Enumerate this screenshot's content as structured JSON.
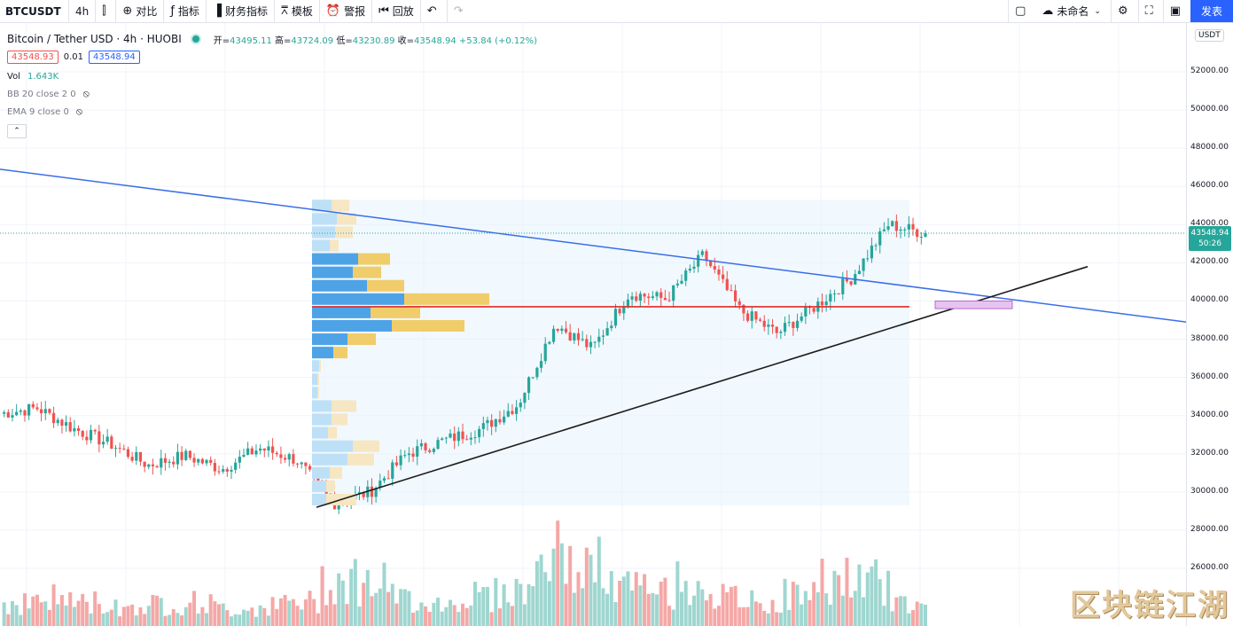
{
  "toolbar": {
    "symbol": "BTCUSDT",
    "interval": "4h",
    "compare": "对比",
    "indicators": "指标",
    "financials": "财务指标",
    "templates": "模板",
    "alerts": "警报",
    "replay": "回放",
    "layout_name": "未命名",
    "publish": "发表"
  },
  "legend": {
    "title": "Bitcoin / Tether USD · 4h · HUOBI",
    "open_label": "开",
    "open": "43495.11",
    "high_label": "高",
    "high": "43724.09",
    "low_label": "低",
    "low": "43230.89",
    "close_label": "收",
    "close": "43548.94",
    "change": "+53.84 (+0.12%)",
    "bid": "43548.93",
    "spread": "0.01",
    "ask": "43548.94",
    "vol_label": "Vol",
    "vol_value": "1.643K",
    "bb": "BB 20 close 2 0",
    "ema": "EMA 9 close 0"
  },
  "price_axis": {
    "currency": "USDT",
    "ticks": [
      "52000.00",
      "50000.00",
      "48000.00",
      "46000.00",
      "44000.00",
      "42000.00",
      "40000.00",
      "38000.00",
      "36000.00",
      "34000.00",
      "32000.00",
      "30000.00",
      "28000.00",
      "26000.00"
    ],
    "last_price": "43548.94",
    "countdown": "50:26"
  },
  "watermark": "区块链江湖",
  "chart_data": {
    "type": "candlestick",
    "symbol": "BTCUSDT",
    "interval": "4h",
    "ylim": [
      24000,
      53500
    ],
    "x": [
      0,
      1,
      2,
      3,
      4,
      5,
      6,
      7,
      8,
      9,
      10,
      11,
      12,
      13,
      14,
      15,
      16,
      17,
      18,
      19,
      20,
      21,
      22,
      23,
      24,
      25
    ],
    "close_path": [
      34100,
      34400,
      33300,
      32500,
      31400,
      31900,
      31200,
      32300,
      31700,
      29400,
      30000,
      32000,
      32700,
      33300,
      34600,
      38800,
      37500,
      40400,
      40100,
      42400,
      39500,
      38300,
      39700,
      41200,
      44000,
      43548.94
    ],
    "volume_relative": [
      0.3,
      0.35,
      0.3,
      0.25,
      0.28,
      0.3,
      0.22,
      0.25,
      0.3,
      0.6,
      0.55,
      0.35,
      0.3,
      0.4,
      0.45,
      0.9,
      0.75,
      0.5,
      0.45,
      0.55,
      0.35,
      0.3,
      0.4,
      0.6,
      0.55,
      0.3
    ],
    "last_price": 43548.94,
    "horizontal_line": 39700,
    "volume_profile": [
      {
        "price": 45000,
        "up": 22,
        "down": 20
      },
      {
        "price": 44300,
        "up": 28,
        "down": 22
      },
      {
        "price": 43600,
        "up": 26,
        "down": 20
      },
      {
        "price": 42900,
        "up": 20,
        "down": 10
      },
      {
        "price": 42200,
        "up": 52,
        "down": 36
      },
      {
        "price": 41500,
        "up": 46,
        "down": 32
      },
      {
        "price": 40800,
        "up": 62,
        "down": 42
      },
      {
        "price": 40100,
        "up": 104,
        "down": 96
      },
      {
        "price": 39400,
        "up": 66,
        "down": 56
      },
      {
        "price": 38700,
        "up": 90,
        "down": 82
      },
      {
        "price": 38000,
        "up": 40,
        "down": 32
      },
      {
        "price": 37300,
        "up": 24,
        "down": 16
      },
      {
        "price": 36600,
        "up": 8,
        "down": 2
      },
      {
        "price": 35900,
        "up": 6,
        "down": 2
      },
      {
        "price": 35200,
        "up": 6,
        "down": 2
      },
      {
        "price": 34500,
        "up": 22,
        "down": 28
      },
      {
        "price": 33800,
        "up": 22,
        "down": 18
      },
      {
        "price": 33100,
        "up": 18,
        "down": 10
      },
      {
        "price": 32400,
        "up": 46,
        "down": 30
      },
      {
        "price": 31700,
        "up": 40,
        "down": 30
      },
      {
        "price": 31000,
        "up": 20,
        "down": 14
      },
      {
        "price": 30300,
        "up": 16,
        "down": 10
      },
      {
        "price": 29600,
        "up": 16,
        "down": 34
      }
    ]
  }
}
